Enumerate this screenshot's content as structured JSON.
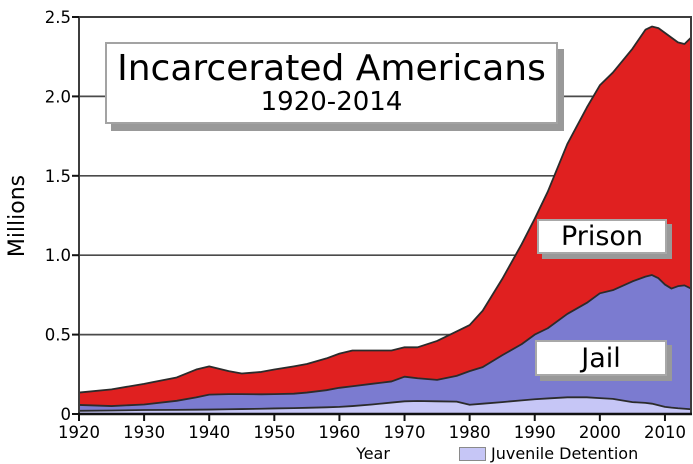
{
  "title": {
    "line1": "Incarcerated Americans",
    "line2": "1920-2014"
  },
  "axes": {
    "y_label": "Millions",
    "x_label": "Year",
    "y_ticks": [
      "0",
      "0.5",
      "1.0",
      "1.5",
      "2.0",
      "2.5"
    ],
    "y_tick_values": [
      0,
      0.5,
      1.0,
      1.5,
      2.0,
      2.5
    ],
    "x_ticks": [
      1920,
      1930,
      1940,
      1950,
      1960,
      1970,
      1980,
      1990,
      2000,
      2010
    ]
  },
  "area_labels": {
    "prison": "Prison",
    "jail": "Jail"
  },
  "legend": {
    "label": "Juvenile Detention",
    "swatch_color": "#c6c6f6"
  },
  "colors": {
    "prison": "#e02020",
    "jail": "#7b7bd0",
    "juvenile": "#c6c6f6",
    "outline": "#2b2b2b",
    "grid": "#4a4a4a",
    "frame": "#3d3d3d",
    "axis": "#111111",
    "box_border": "#a3a3a3",
    "box_shadow": "#999999"
  },
  "chart_data": {
    "type": "area",
    "stacked": true,
    "title": "Incarcerated Americans 1920-2014",
    "xlabel": "Year",
    "ylabel": "Millions",
    "xlim": [
      1920,
      2014
    ],
    "ylim": [
      0,
      2.5
    ],
    "grid": "horizontal",
    "legend_position": "bottom",
    "years": [
      1920,
      1925,
      1930,
      1935,
      1938,
      1940,
      1943,
      1945,
      1948,
      1950,
      1953,
      1955,
      1958,
      1960,
      1962,
      1965,
      1968,
      1970,
      1972,
      1975,
      1978,
      1980,
      1982,
      1985,
      1988,
      1990,
      1992,
      1995,
      1998,
      2000,
      2002,
      2005,
      2007,
      2008,
      2009,
      2010,
      2011,
      2012,
      2013,
      2014
    ],
    "series": [
      {
        "name": "Juvenile Detention",
        "color": "#c6c6f6",
        "values": [
          0.02,
          0.022,
          0.025,
          0.026,
          0.027,
          0.028,
          0.03,
          0.031,
          0.033,
          0.035,
          0.037,
          0.039,
          0.042,
          0.045,
          0.05,
          0.06,
          0.072,
          0.08,
          0.082,
          0.08,
          0.078,
          0.058,
          0.065,
          0.075,
          0.086,
          0.093,
          0.098,
          0.105,
          0.105,
          0.1,
          0.095,
          0.075,
          0.07,
          0.065,
          0.055,
          0.045,
          0.04,
          0.036,
          0.033,
          0.03
        ]
      },
      {
        "name": "Jail",
        "color": "#7b7bd0",
        "values": [
          0.037,
          0.028,
          0.035,
          0.057,
          0.078,
          0.094,
          0.095,
          0.094,
          0.091,
          0.09,
          0.091,
          0.096,
          0.108,
          0.12,
          0.125,
          0.13,
          0.133,
          0.155,
          0.143,
          0.135,
          0.162,
          0.212,
          0.23,
          0.295,
          0.354,
          0.407,
          0.442,
          0.525,
          0.595,
          0.66,
          0.685,
          0.76,
          0.795,
          0.81,
          0.8,
          0.77,
          0.75,
          0.769,
          0.777,
          0.76
        ]
      },
      {
        "name": "Prison",
        "color": "#e02020",
        "values": [
          0.078,
          0.105,
          0.13,
          0.147,
          0.175,
          0.178,
          0.145,
          0.13,
          0.141,
          0.155,
          0.172,
          0.18,
          0.2,
          0.215,
          0.225,
          0.21,
          0.195,
          0.185,
          0.195,
          0.245,
          0.28,
          0.29,
          0.355,
          0.48,
          0.63,
          0.73,
          0.86,
          1.07,
          1.23,
          1.31,
          1.37,
          1.465,
          1.555,
          1.565,
          1.575,
          1.585,
          1.58,
          1.535,
          1.52,
          1.58
        ]
      }
    ]
  }
}
